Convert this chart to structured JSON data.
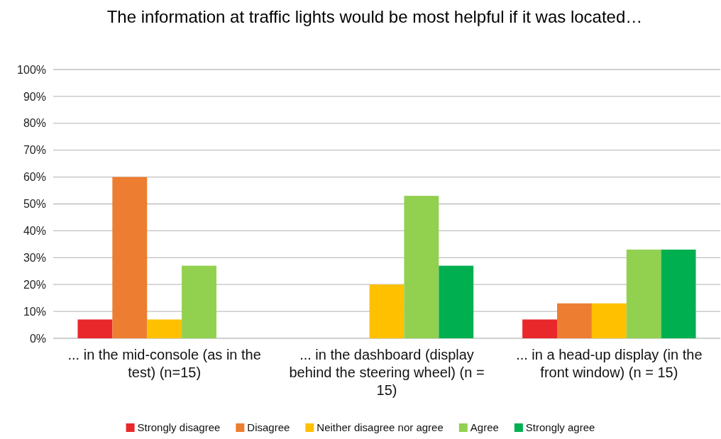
{
  "chart_data": {
    "type": "bar",
    "title": "The information at traffic lights would be most helpful if it was located…",
    "categories": [
      "... in the mid-console (as in the test) (n=15)",
      "... in the dashboard (display behind the steering wheel) (n = 15)",
      "... in a head-up display (in the front window) (n = 15)"
    ],
    "series": [
      {
        "name": "Strongly disagree",
        "color": "#e8282b",
        "values": [
          7,
          0,
          7
        ]
      },
      {
        "name": "Disagree",
        "color": "#ed7d31",
        "values": [
          60,
          0,
          13
        ]
      },
      {
        "name": "Neither disagree nor agree",
        "color": "#ffc000",
        "values": [
          7,
          20,
          13
        ]
      },
      {
        "name": "Agree",
        "color": "#92d050",
        "values": [
          27,
          53,
          33
        ]
      },
      {
        "name": "Strongly agree",
        "color": "#00b050",
        "values": [
          0,
          27,
          33
        ]
      }
    ],
    "ylim": [
      0,
      100
    ],
    "yticks": [
      {
        "value": 0,
        "label": "0%"
      },
      {
        "value": 10,
        "label": "10%"
      },
      {
        "value": 20,
        "label": "20%"
      },
      {
        "value": 30,
        "label": "30%"
      },
      {
        "value": 40,
        "label": "40%"
      },
      {
        "value": 50,
        "label": "50%"
      },
      {
        "value": 60,
        "label": "60%"
      },
      {
        "value": 70,
        "label": "70%"
      },
      {
        "value": 80,
        "label": "80%"
      },
      {
        "value": 90,
        "label": "90%"
      },
      {
        "value": 100,
        "label": "100%"
      }
    ],
    "grid": "y",
    "legend": "bottom"
  }
}
